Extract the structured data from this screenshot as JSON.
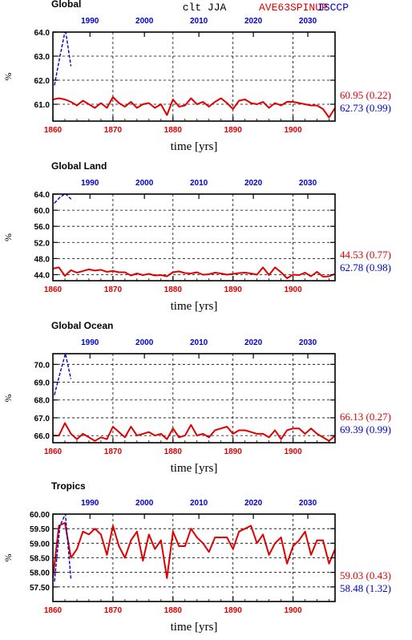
{
  "header": {
    "variable": "clt JJA",
    "model_label": "AVE63SPINUP",
    "obs_label": "ISCCP"
  },
  "colors": {
    "model": "#e00000",
    "obs": "#0000cc",
    "axis": "#000000",
    "grid": "#000000"
  },
  "chart_data": [
    {
      "type": "line",
      "title": "Global",
      "xlabel": "time [yrs]",
      "ylabel": "%",
      "xlim": [
        1860,
        1907
      ],
      "xticks_bottom": [
        1860,
        1870,
        1880,
        1890,
        1900
      ],
      "xlim_top": [
        1983.2,
        2035
      ],
      "xticks_top": [
        1990,
        2000,
        2010,
        2020,
        2030
      ],
      "ylim": [
        60.3,
        64.0
      ],
      "yticks": [
        61.0,
        62.0,
        63.0,
        64.0
      ],
      "ytick_labels": [
        "61.0",
        "62.0",
        "63.0",
        "64.0"
      ],
      "grid": true,
      "series": [
        {
          "color": "#e00000",
          "years": [
            1860,
            1861,
            1862,
            1863,
            1864,
            1865,
            1866,
            1867,
            1868,
            1869,
            1870,
            1871,
            1872,
            1873,
            1874,
            1875,
            1876,
            1877,
            1878,
            1879,
            1880,
            1881,
            1882,
            1883,
            1884,
            1885,
            1886,
            1887,
            1888,
            1889,
            1890,
            1891,
            1892,
            1893,
            1894,
            1895,
            1896,
            1897,
            1898,
            1899,
            1900,
            1901,
            1902,
            1903,
            1904,
            1905,
            1906,
            1907
          ],
          "values": [
            61.2,
            61.25,
            61.2,
            61.1,
            60.95,
            61.15,
            61.0,
            60.85,
            61.05,
            60.85,
            61.3,
            61.05,
            60.9,
            61.1,
            60.85,
            61.0,
            61.05,
            60.85,
            61.0,
            60.55,
            61.2,
            60.9,
            60.95,
            61.25,
            61.0,
            61.1,
            60.9,
            61.1,
            61.25,
            61.05,
            60.8,
            61.15,
            61.2,
            61.05,
            61.0,
            61.1,
            60.85,
            61.05,
            60.95,
            61.1,
            61.1,
            61.05,
            61.0,
            60.95,
            60.95,
            60.8,
            60.45,
            60.85
          ]
        },
        {
          "color": "#0000cc",
          "dashed": true,
          "years": [
            1983.5,
            1984.5,
            1985.5,
            1986.5
          ],
          "values": [
            61.8,
            63.0,
            64.1,
            62.6
          ]
        }
      ],
      "annotations": [
        {
          "text": "60.95 (0.22)",
          "color": "#e00000"
        },
        {
          "text": "62.73 (0.99)",
          "color": "#0000cc"
        }
      ]
    },
    {
      "type": "line",
      "title": "Global Land",
      "xlabel": "time [yrs]",
      "ylabel": "%",
      "xlim": [
        1860,
        1907
      ],
      "xticks_bottom": [
        1860,
        1870,
        1880,
        1890,
        1900
      ],
      "xlim_top": [
        1983.2,
        2035
      ],
      "xticks_top": [
        1990,
        2000,
        2010,
        2020,
        2030
      ],
      "ylim": [
        42.5,
        64.0
      ],
      "yticks": [
        44.0,
        48.0,
        52.0,
        56.0,
        60.0,
        64.0
      ],
      "ytick_labels": [
        "44.0",
        "48.0",
        "52.0",
        "56.0",
        "60.0",
        "64.0"
      ],
      "grid": true,
      "series": [
        {
          "color": "#e00000",
          "years": [
            1860,
            1861,
            1862,
            1863,
            1864,
            1865,
            1866,
            1867,
            1868,
            1869,
            1870,
            1871,
            1872,
            1873,
            1874,
            1875,
            1876,
            1877,
            1878,
            1879,
            1880,
            1881,
            1882,
            1883,
            1884,
            1885,
            1886,
            1887,
            1888,
            1889,
            1890,
            1891,
            1892,
            1893,
            1894,
            1895,
            1896,
            1897,
            1898,
            1899,
            1900,
            1901,
            1902,
            1903,
            1904,
            1905,
            1906,
            1907
          ],
          "values": [
            45.5,
            45.8,
            43.7,
            45.1,
            44.5,
            44.9,
            45.3,
            45.0,
            45.2,
            44.7,
            44.9,
            44.6,
            44.6,
            43.8,
            44.3,
            43.9,
            44.2,
            43.8,
            43.9,
            43.6,
            44.6,
            44.8,
            44.4,
            44.3,
            44.6,
            44.0,
            44.1,
            44.5,
            44.3,
            44.0,
            44.2,
            44.4,
            44.5,
            44.3,
            44.0,
            45.8,
            43.9,
            45.8,
            44.6,
            43.1,
            44.0,
            43.9,
            44.5,
            43.6,
            44.7,
            43.5,
            43.6,
            44.2
          ]
        },
        {
          "color": "#0000cc",
          "dashed": true,
          "years": [
            1983.5,
            1984.5,
            1985.5,
            1986.5
          ],
          "values": [
            61.8,
            63.2,
            64.1,
            62.8
          ]
        }
      ],
      "annotations": [
        {
          "text": "44.53 (0.77)",
          "color": "#e00000"
        },
        {
          "text": "62.78 (0.98)",
          "color": "#0000cc"
        }
      ]
    },
    {
      "type": "line",
      "title": "Global Ocean",
      "xlabel": "time [yrs]",
      "ylabel": "%",
      "xlim": [
        1860,
        1907
      ],
      "xticks_bottom": [
        1860,
        1870,
        1880,
        1890,
        1900
      ],
      "xlim_top": [
        1983.2,
        2035
      ],
      "xticks_top": [
        1990,
        2000,
        2010,
        2020,
        2030
      ],
      "ylim": [
        65.6,
        70.6
      ],
      "yticks": [
        66.0,
        67.0,
        68.0,
        69.0,
        70.0
      ],
      "ytick_labels": [
        "66.0",
        "67.0",
        "68.0",
        "69.0",
        "70.0"
      ],
      "grid": true,
      "series": [
        {
          "color": "#e00000",
          "years": [
            1860,
            1861,
            1862,
            1863,
            1864,
            1865,
            1866,
            1867,
            1868,
            1869,
            1870,
            1871,
            1872,
            1873,
            1874,
            1875,
            1876,
            1877,
            1878,
            1879,
            1880,
            1881,
            1882,
            1883,
            1884,
            1885,
            1886,
            1887,
            1888,
            1889,
            1890,
            1891,
            1892,
            1893,
            1894,
            1895,
            1896,
            1897,
            1898,
            1899,
            1900,
            1901,
            1902,
            1903,
            1904,
            1905,
            1906,
            1907
          ],
          "values": [
            66.0,
            66.0,
            66.7,
            66.1,
            65.8,
            66.1,
            65.9,
            65.7,
            65.9,
            65.8,
            66.5,
            66.2,
            65.9,
            66.5,
            66.0,
            66.1,
            66.2,
            66.0,
            66.1,
            65.8,
            66.4,
            65.9,
            66.0,
            66.6,
            66.0,
            66.1,
            65.9,
            66.3,
            66.4,
            66.5,
            66.1,
            66.3,
            66.3,
            66.2,
            66.1,
            66.1,
            65.9,
            66.3,
            65.8,
            66.3,
            66.4,
            66.4,
            66.1,
            66.4,
            66.1,
            65.9,
            65.7,
            66.0
          ]
        },
        {
          "color": "#0000cc",
          "dashed": true,
          "years": [
            1983.5,
            1984.5,
            1985.5,
            1986.5
          ],
          "values": [
            68.3,
            69.5,
            70.6,
            69.2
          ]
        }
      ],
      "annotations": [
        {
          "text": "66.13 (0.27)",
          "color": "#e00000"
        },
        {
          "text": "69.39 (0.99)",
          "color": "#0000cc"
        }
      ]
    },
    {
      "type": "line",
      "title": "Tropics",
      "xlabel": "time [yrs]",
      "ylabel": "%",
      "xlim": [
        1860,
        1907
      ],
      "xticks_bottom": [
        1860,
        1870,
        1880,
        1890,
        1900
      ],
      "xlim_top": [
        1983.2,
        2035
      ],
      "xticks_top": [
        1990,
        2000,
        2010,
        2020,
        2030
      ],
      "ylim": [
        57.0,
        60.0
      ],
      "yticks": [
        57.5,
        58.0,
        58.5,
        59.0,
        59.5,
        60.0
      ],
      "ytick_labels": [
        "57.50",
        "58.00",
        "58.50",
        "59.00",
        "59.50",
        "60.00"
      ],
      "grid": true,
      "series": [
        {
          "color": "#e00000",
          "years": [
            1860,
            1861,
            1862,
            1863,
            1864,
            1865,
            1866,
            1867,
            1868,
            1869,
            1870,
            1871,
            1872,
            1873,
            1874,
            1875,
            1876,
            1877,
            1878,
            1879,
            1880,
            1881,
            1882,
            1883,
            1884,
            1885,
            1886,
            1887,
            1888,
            1889,
            1890,
            1891,
            1892,
            1893,
            1894,
            1895,
            1896,
            1897,
            1898,
            1899,
            1900,
            1901,
            1902,
            1903,
            1904,
            1905,
            1906,
            1907
          ],
          "values": [
            57.8,
            59.6,
            59.7,
            58.5,
            58.8,
            59.4,
            59.3,
            59.5,
            59.3,
            58.6,
            59.6,
            58.9,
            58.5,
            59.1,
            59.4,
            58.4,
            59.3,
            58.8,
            59.1,
            57.8,
            59.4,
            58.9,
            58.9,
            59.5,
            59.2,
            59.0,
            58.7,
            59.2,
            59.2,
            59.2,
            58.8,
            59.4,
            59.5,
            59.6,
            59.0,
            59.3,
            58.6,
            59.0,
            59.2,
            58.3,
            58.9,
            59.1,
            59.4,
            58.6,
            59.1,
            59.1,
            58.3,
            58.8
          ]
        },
        {
          "color": "#0000cc",
          "dashed": true,
          "years": [
            1983.5,
            1984.5,
            1985.5,
            1986.5
          ],
          "values": [
            57.7,
            59.6,
            60.0,
            57.8
          ]
        }
      ],
      "annotations": [
        {
          "text": "59.03 (0.43)",
          "color": "#e00000"
        },
        {
          "text": "58.48 (1.32)",
          "color": "#0000cc"
        }
      ]
    }
  ]
}
